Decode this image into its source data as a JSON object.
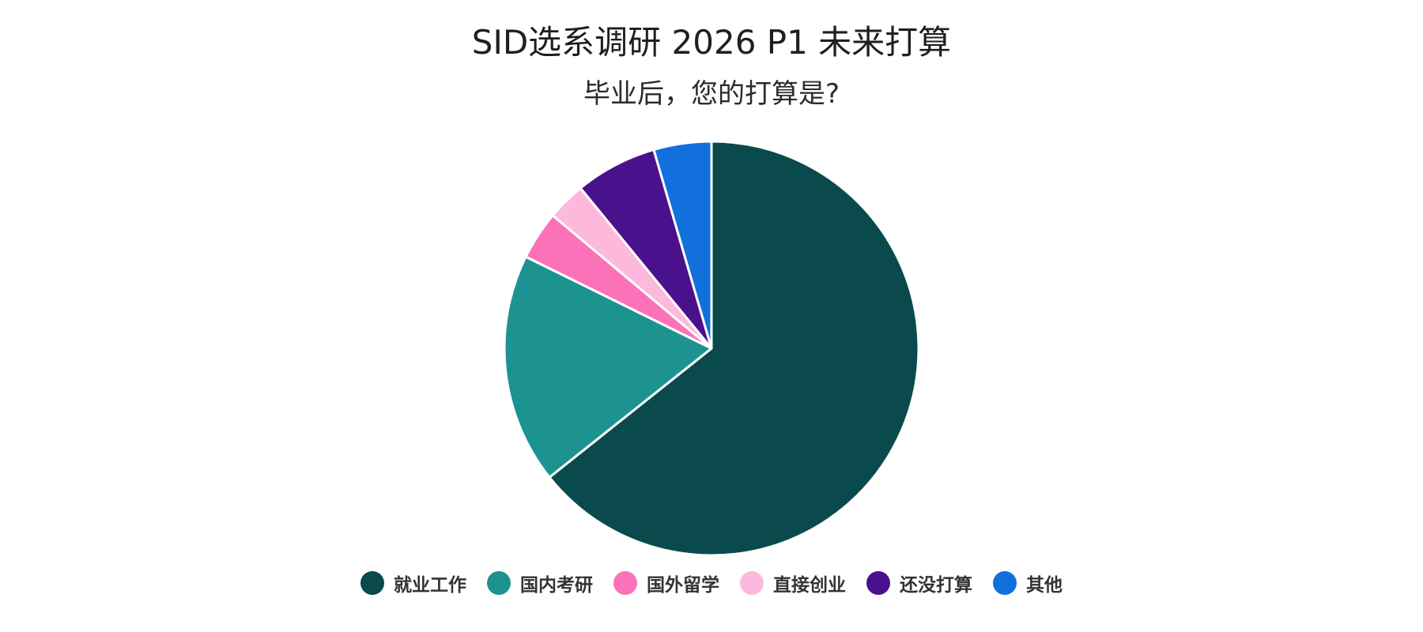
{
  "chart_data": {
    "type": "pie",
    "title": "SID选系调研 2026 P1 未来打算",
    "subtitle": "毕业后，您的打算是?",
    "legend_position": "bottom",
    "slices": [
      {
        "label": "就业工作",
        "value": 64.3,
        "color": "#0b4a4c"
      },
      {
        "label": "国内考研",
        "value": 18.0,
        "color": "#1d9391"
      },
      {
        "label": "国外留学",
        "value": 3.8,
        "color": "#fb72b8"
      },
      {
        "label": "直接创业",
        "value": 3.0,
        "color": "#fcb9dc"
      },
      {
        "label": "还没打算",
        "value": 6.4,
        "color": "#4a118d"
      },
      {
        "label": "其他",
        "value": 4.5,
        "color": "#1170db"
      }
    ]
  }
}
